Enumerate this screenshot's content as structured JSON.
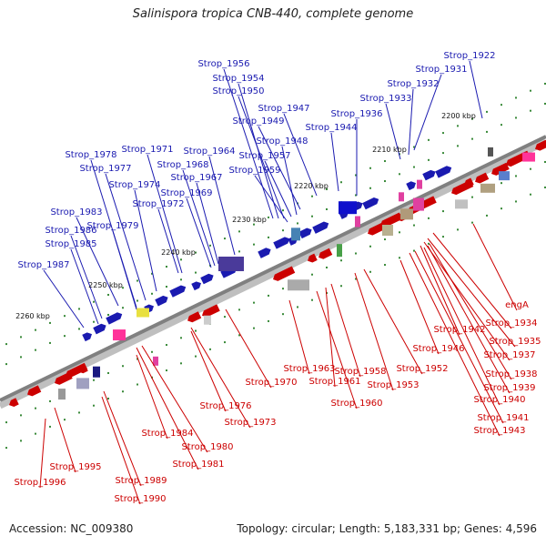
{
  "header": {
    "title": "Salinispora tropica CNB-440, complete genome"
  },
  "footer": {
    "accession": "Accession: NC_009380",
    "summary": "Topology: circular; Length: 5,183,331 bp; Genes: 4,596"
  },
  "colors": {
    "forward": "#1a1ab0",
    "reverse": "#cc0000",
    "backbone": "#808080",
    "gc_dot": "#2e8b2e"
  },
  "ticks": [
    "2200 kbp",
    "2210 kbp",
    "2220 kbp",
    "2230 kbp",
    "2240 kbp",
    "2250 kbp",
    "2260 kbp"
  ],
  "forward_labels": [
    "Strop_1922",
    "Strop_1931",
    "Strop_1932",
    "Strop_1933",
    "Strop_1936",
    "Strop_1944",
    "Strop_1947",
    "Strop_1949",
    "Strop_1948",
    "Strop_1957",
    "Strop_1959",
    "Strop_1956",
    "Strop_1954",
    "Strop_1950",
    "Strop_1964",
    "Strop_1967",
    "Strop_1969",
    "Strop_1968",
    "Strop_1971",
    "Strop_1972",
    "Strop_1974",
    "Strop_1977",
    "Strop_1978",
    "Strop_1979",
    "Strop_1983",
    "Strop_1986",
    "Strop_1985",
    "Strop_1987"
  ],
  "reverse_labels": [
    "engA",
    "Strop_1934",
    "Strop_1935",
    "Strop_1937",
    "Strop_1942",
    "Strop_1938",
    "Strop_1939",
    "Strop_1940",
    "Strop_1941",
    "Strop_1943",
    "Strop_1946",
    "Strop_1952",
    "Strop_1953",
    "Strop_1958",
    "Strop_1961",
    "Strop_1960",
    "Strop_1963",
    "Strop_1970",
    "Strop_1973",
    "Strop_1976",
    "Strop_1980",
    "Strop_1981",
    "Strop_1984",
    "Strop_1989",
    "Strop_1990",
    "Strop_1995",
    "Strop_1996"
  ]
}
